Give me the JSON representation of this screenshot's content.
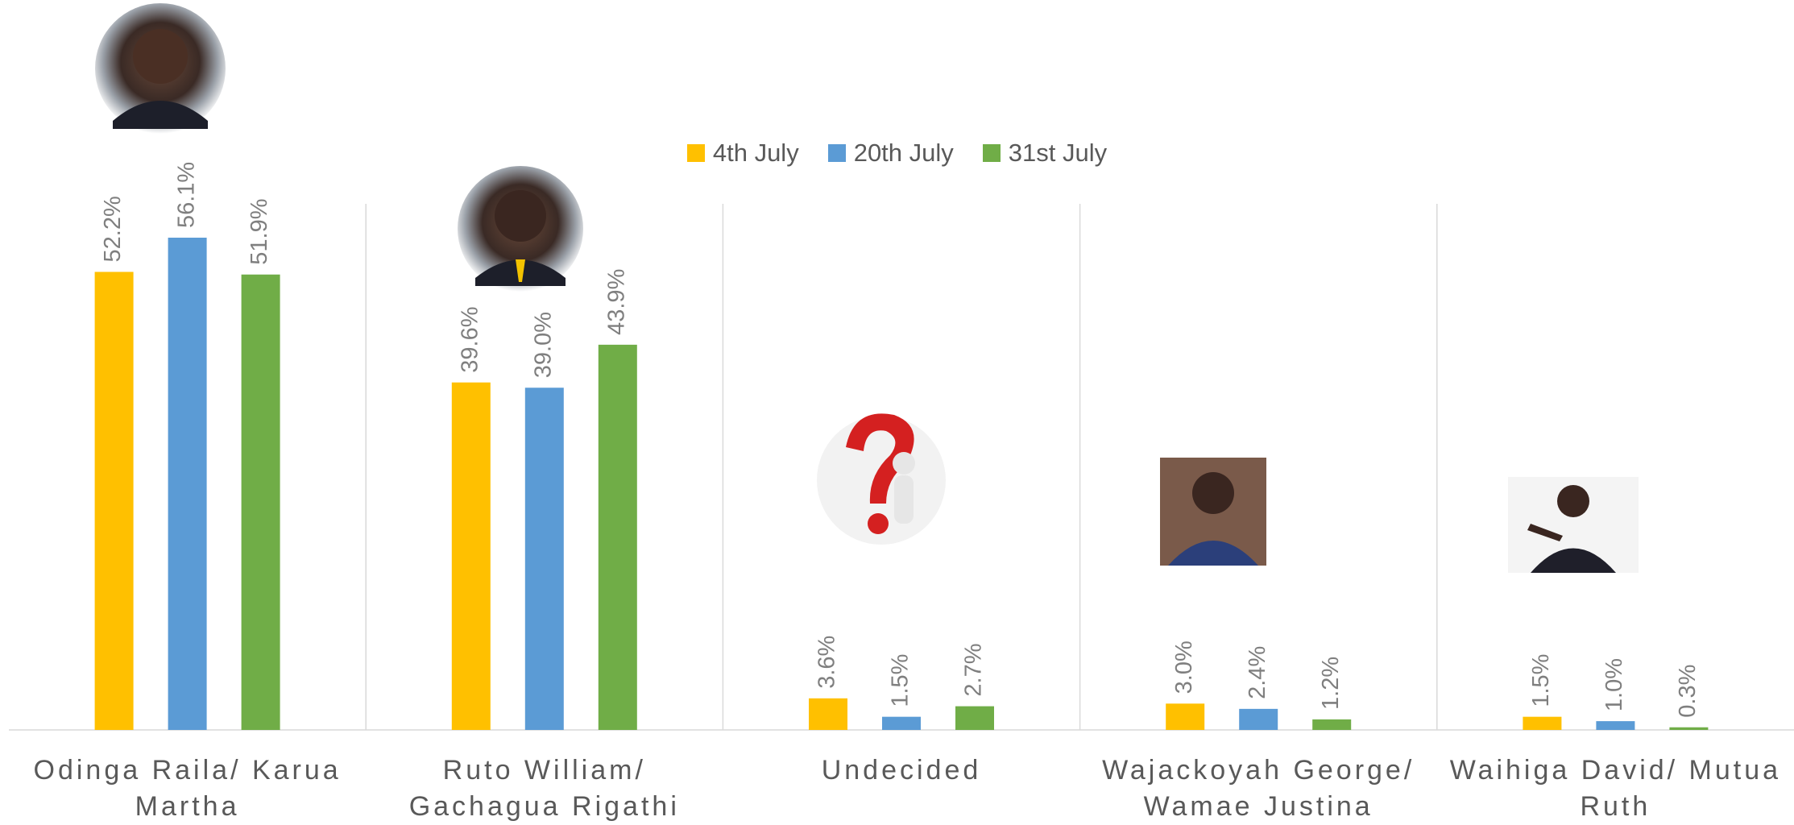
{
  "chart_data": {
    "type": "bar",
    "categories": [
      "Odinga Raila/ Karua Martha",
      "Ruto William/ Gachagua Rigathi",
      "Undecided",
      "Wajackoyah George/ Wamae Justina",
      "Waihiga David/ Mutua Ruth"
    ],
    "series": [
      {
        "name": "4th July",
        "color": "#ffc000",
        "values": [
          52.2,
          39.6,
          3.6,
          3.0,
          1.5
        ],
        "value_labels": [
          "52.2%",
          "39.6%",
          "3.6%",
          "3.0%",
          "1.5%"
        ]
      },
      {
        "name": "20th July",
        "color": "#5b9bd5",
        "values": [
          56.1,
          39.0,
          1.5,
          2.4,
          1.0
        ],
        "value_labels": [
          "56.1%",
          "39.0%",
          "1.5%",
          "2.4%",
          "1.0%"
        ]
      },
      {
        "name": "31st July",
        "color": "#70ad47",
        "values": [
          51.9,
          43.9,
          2.7,
          1.2,
          0.3
        ],
        "value_labels": [
          "51.9%",
          "43.9%",
          "2.7%",
          "1.2%",
          "0.3%"
        ]
      }
    ],
    "legend": "top"
  }
}
